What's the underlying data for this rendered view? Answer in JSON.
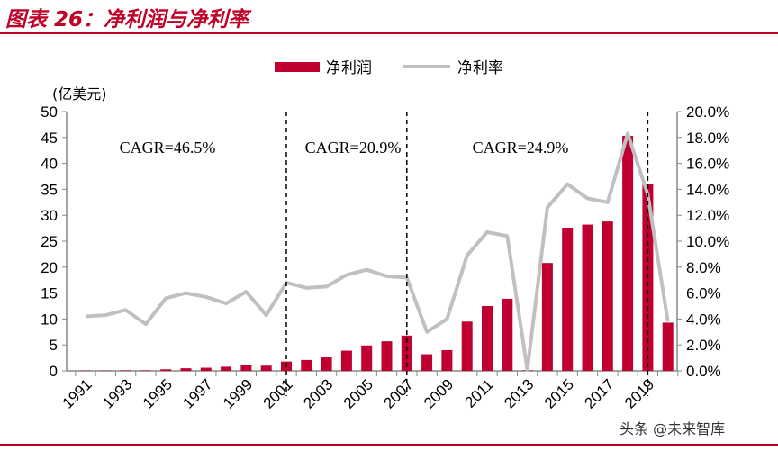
{
  "title": "图表 26：净利润与净利率",
  "watermark": "头条 @未来智库",
  "chart_data": {
    "type": "bar+line",
    "unit_label": "(亿美元)",
    "x": [
      1991,
      1992,
      1993,
      1994,
      1995,
      1996,
      1997,
      1998,
      1999,
      2000,
      2001,
      2002,
      2003,
      2004,
      2005,
      2006,
      2007,
      2008,
      2009,
      2010,
      2011,
      2012,
      2013,
      2014,
      2015,
      2016,
      2017,
      2018,
      2019,
      2020
    ],
    "x_tick_labels": [
      "1991",
      "1993",
      "1995",
      "1997",
      "1999",
      "2001",
      "2003",
      "2005",
      "2007",
      "2009",
      "2011",
      "2013",
      "2015",
      "2017",
      "2019"
    ],
    "series": [
      {
        "name": "净利润",
        "type": "bar",
        "axis": "left",
        "color": "#c00030",
        "values": [
          0.05,
          0.05,
          0.1,
          0.1,
          0.3,
          0.5,
          0.6,
          0.8,
          1.2,
          1.0,
          1.8,
          2.1,
          2.6,
          3.9,
          4.9,
          5.7,
          6.8,
          3.2,
          4.0,
          9.5,
          12.5,
          13.9,
          0.1,
          20.8,
          27.6,
          28.2,
          28.8,
          45.3,
          36.1,
          9.3
        ]
      },
      {
        "name": "净利率",
        "type": "line",
        "axis": "right",
        "color": "#c0c0c0",
        "values": [
          4.2,
          4.3,
          4.7,
          3.6,
          5.6,
          6.0,
          5.7,
          5.2,
          6.1,
          4.3,
          6.8,
          6.4,
          6.5,
          7.4,
          7.8,
          7.3,
          7.2,
          3.0,
          4.0,
          8.9,
          10.7,
          10.4,
          0.1,
          12.6,
          14.4,
          13.3,
          13.0,
          18.3,
          13.6,
          3.8
        ]
      }
    ],
    "ylim_left": [
      0,
      50
    ],
    "yticks_left": [
      "0",
      "5",
      "10",
      "15",
      "20",
      "25",
      "30",
      "35",
      "40",
      "45",
      "50"
    ],
    "ylim_right": [
      0,
      20
    ],
    "yticks_right": [
      "0.0%",
      "2.0%",
      "4.0%",
      "6.0%",
      "8.0%",
      "10.0%",
      "12.0%",
      "14.0%",
      "16.0%",
      "18.0%",
      "20.0%"
    ],
    "dividers_at": [
      2001,
      2007,
      2019
    ],
    "annotations": [
      "CAGR=46.5%",
      "CAGR=20.9%",
      "CAGR=24.9%"
    ],
    "legend": "top-center",
    "grid": false
  }
}
